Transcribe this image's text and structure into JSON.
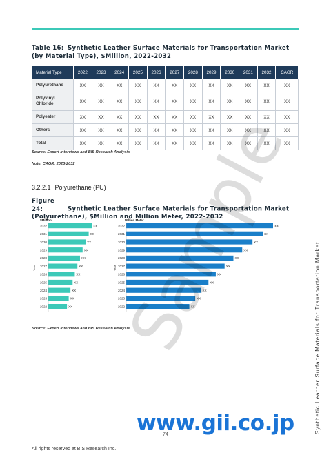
{
  "table": {
    "label": "Table 16:",
    "title": "Synthetic Leather Surface Materials for Transportation Market (by Material Type), $Million, 2022-2032",
    "headers": [
      "Material Type",
      "2022",
      "2023",
      "2024",
      "2025",
      "2026",
      "2027",
      "2028",
      "2029",
      "2030",
      "2031",
      "2032",
      "CAGR"
    ],
    "rows": [
      {
        "label": "Polyurethane",
        "cells": [
          "XX",
          "XX",
          "XX",
          "XX",
          "XX",
          "XX",
          "XX",
          "XX",
          "XX",
          "XX",
          "XX",
          "XX"
        ]
      },
      {
        "label": "Polyvinyl Chloride",
        "cells": [
          "XX",
          "XX",
          "XX",
          "XX",
          "XX",
          "XX",
          "XX",
          "XX",
          "XX",
          "XX",
          "XX",
          "XX"
        ]
      },
      {
        "label": "Polyester",
        "cells": [
          "XX",
          "XX",
          "XX",
          "XX",
          "XX",
          "XX",
          "XX",
          "XX",
          "XX",
          "XX",
          "XX",
          "XX"
        ]
      },
      {
        "label": "Others",
        "cells": [
          "XX",
          "XX",
          "XX",
          "XX",
          "XX",
          "XX",
          "XX",
          "XX",
          "XX",
          "XX",
          "XX",
          "XX"
        ]
      },
      {
        "label": "Total",
        "cells": [
          "XX",
          "XX",
          "XX",
          "XX",
          "XX",
          "XX",
          "XX",
          "XX",
          "XX",
          "XX",
          "XX",
          "XX"
        ]
      }
    ],
    "source": "Source: Expert Interviews and BIS Research Analysis",
    "note": "Note: CAGR: 2023-2032"
  },
  "section": {
    "number": "3.2.2.1",
    "title": "Polyurethane (PU)"
  },
  "figure": {
    "label": "Figure 24:",
    "title": "Synthetic Leather Surface Materials for Transportation Market (Polyurethane), $Million and Million Meter, 2022-2032",
    "source": "Source: Expert Interviews and BIS Research Analysis"
  },
  "chart_data": [
    {
      "type": "bar",
      "orientation": "horizontal",
      "unit_label": "$Million",
      "ylabel": "Year",
      "color": "#3cc9b8",
      "categories": [
        "2032",
        "2031",
        "2030",
        "2029",
        "2028",
        "2027",
        "2026",
        "2025",
        "2024",
        "2023",
        "2022"
      ],
      "values": [
        10,
        9.3,
        8.6,
        7.9,
        7.3,
        6.7,
        6.1,
        5.6,
        5.1,
        4.7,
        4.3
      ],
      "data_labels": [
        "XX",
        "XX",
        "XX",
        "XX",
        "XX",
        "XX",
        "XX",
        "XX",
        "XX",
        "XX",
        "XX"
      ]
    },
    {
      "type": "bar",
      "orientation": "horizontal",
      "unit_label": "Million Meter",
      "ylabel": "Year",
      "color": "#1a7fc9",
      "categories": [
        "2032",
        "2031",
        "2030",
        "2029",
        "2028",
        "2027",
        "2026",
        "2025",
        "2024",
        "2023",
        "2022"
      ],
      "values": [
        10,
        9.3,
        8.6,
        7.9,
        7.3,
        6.7,
        6.1,
        5.6,
        5.1,
        4.7,
        4.3
      ],
      "data_labels": [
        "XX",
        "XX",
        "XX",
        "XX",
        "XX",
        "XX",
        "XX",
        "XX",
        "XX",
        "XX",
        "XX"
      ]
    }
  ],
  "sidebar_text": "Synthetic Leather Surface Materials for Transportation Market",
  "watermark": "Sample",
  "website": "www.gii.co.jp",
  "page_number": "74",
  "footer": "All rights reserved at BIS Research Inc."
}
